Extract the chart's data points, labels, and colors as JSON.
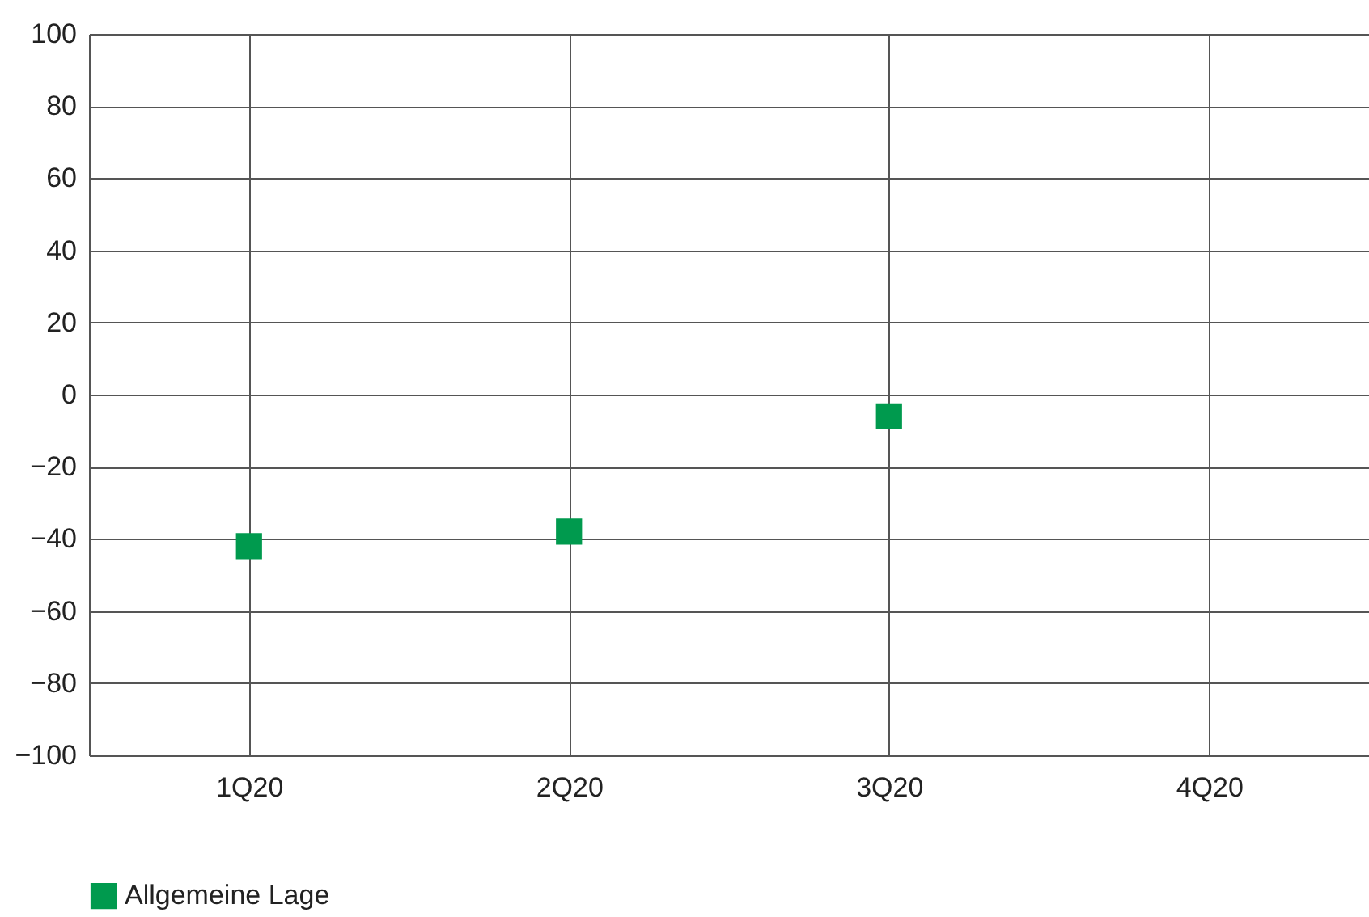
{
  "chart_data": {
    "type": "scatter",
    "categories": [
      "1Q20",
      "2Q20",
      "3Q20",
      "4Q20"
    ],
    "series": [
      {
        "name": "Allgemeine Lage",
        "color": "#009a4e",
        "values": [
          -42,
          -38,
          -6,
          null
        ]
      }
    ],
    "ylim": [
      -100,
      100
    ],
    "yticks": [
      -100,
      -80,
      -60,
      -40,
      -20,
      0,
      20,
      40,
      60,
      80,
      100
    ],
    "grid": true,
    "legend": "bottom",
    "marker": "square"
  }
}
